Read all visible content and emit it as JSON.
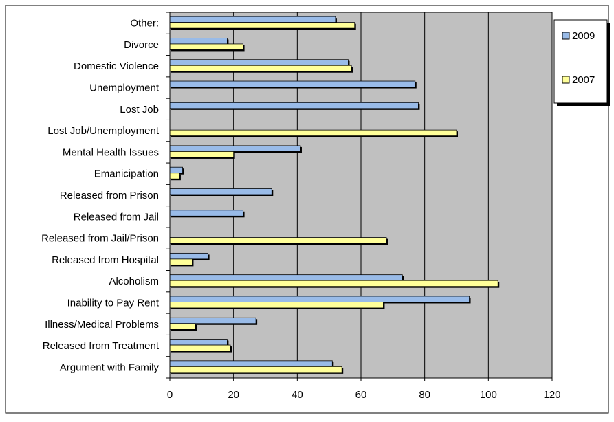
{
  "chart_data": {
    "type": "bar",
    "orientation": "horizontal",
    "categories": [
      "Other:",
      "Divorce",
      "Domestic Violence",
      "Unemployment",
      "Lost Job",
      "Lost Job/Unemployment",
      "Mental Health Issues",
      "Emanicipation",
      "Released from Prison",
      "Released from Jail",
      "Released from Jail/Prison",
      "Released from Hospital",
      "Alcoholism",
      "Inability to Pay Rent",
      "Illness/Medical Problems",
      "Released from Treatment",
      "Argument with Family"
    ],
    "series": [
      {
        "name": "2009",
        "color": "#99BBE8",
        "values": [
          52,
          18,
          56,
          77,
          78,
          null,
          41,
          4,
          32,
          23,
          null,
          12,
          73,
          94,
          27,
          18,
          51
        ]
      },
      {
        "name": "2007",
        "color": "#FFFF99",
        "values": [
          58,
          23,
          57,
          null,
          null,
          90,
          20,
          3,
          null,
          null,
          68,
          7,
          103,
          67,
          8,
          19,
          54
        ]
      }
    ],
    "xlim": [
      0,
      120
    ],
    "xticks": [
      "0",
      "20",
      "40",
      "60",
      "80",
      "100",
      "120"
    ],
    "grid": "vertical",
    "plot_background": "#C0C0C0",
    "legend_position": "right"
  }
}
